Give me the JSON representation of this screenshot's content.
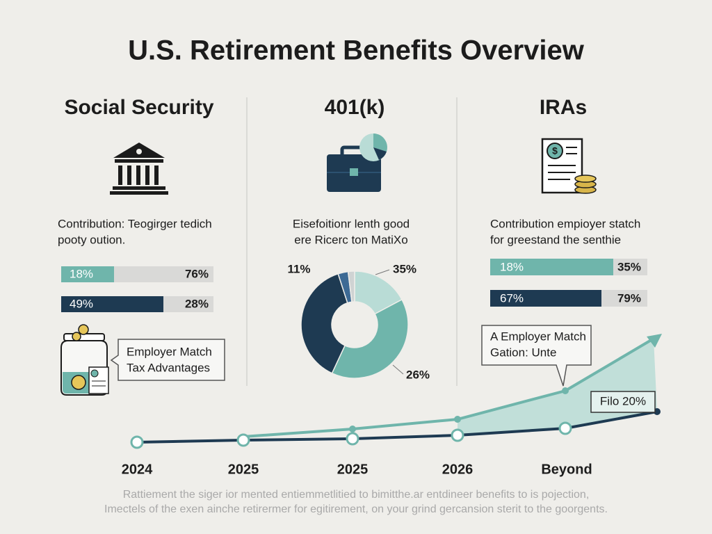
{
  "title": "U.S. Retirement Benefits Overview",
  "columns": [
    {
      "heading": "Social Security",
      "text": [
        "Contribution: Teogirger tedich",
        "pooty oution."
      ],
      "bars": [
        {
          "left": "18%",
          "right": "76%"
        },
        {
          "left": "49%",
          "right": "28%"
        }
      ],
      "callout": [
        "Employ­er Match",
        "Tax Advantages"
      ]
    },
    {
      "heading": "401(k)",
      "text": [
        "Eisefoitionr lenth good",
        "ere Ricerc ton MatiXo"
      ],
      "donut_labels": [
        "11%",
        "35%",
        "26%"
      ]
    },
    {
      "heading": "IRAs",
      "text": [
        "Contribution empioyer statch",
        "for greestand the senthie"
      ],
      "bars": [
        {
          "left": "18%",
          "right": "35%"
        },
        {
          "left": "67%",
          "right": "79%"
        }
      ],
      "callout": [
        "A Employer Match",
        "Gation: Unte"
      ],
      "tag": "Filo 20%"
    }
  ],
  "timeline": [
    "2024",
    "2025",
    "2025",
    "2026",
    "Beyond"
  ],
  "footer": [
    "Rattiement the siger ior mented entiemmetlitied to bimitthe.ar entdineer benefits to is pojection,",
    "Imectels of the exen ainche retirermer for egitirement, on your grind gercansion sterit to the goorgents."
  ]
}
